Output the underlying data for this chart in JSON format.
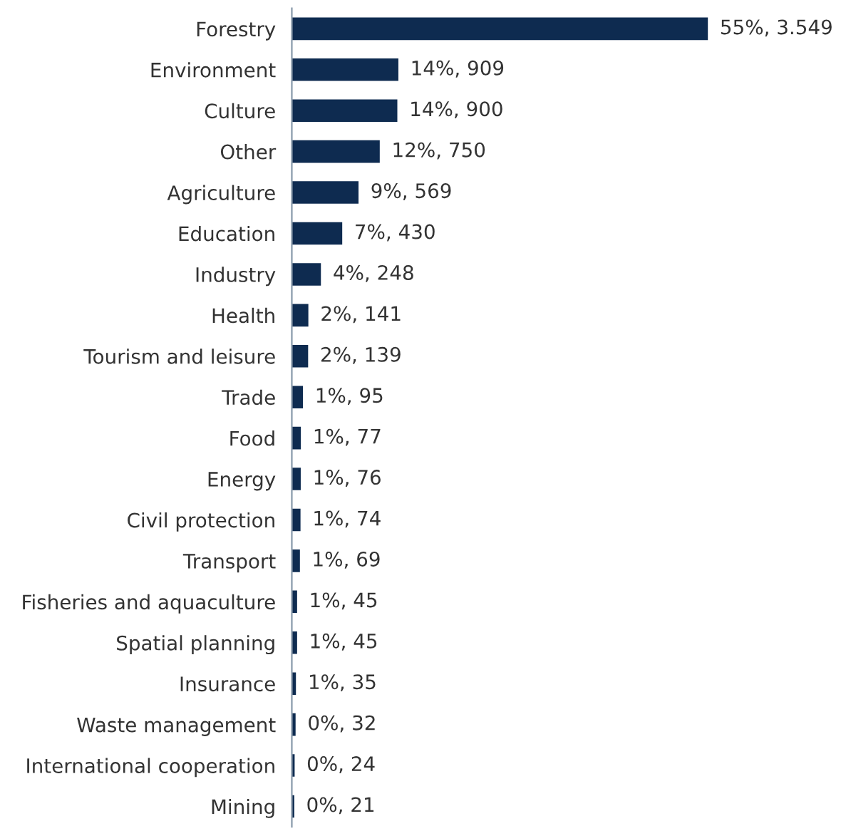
{
  "chart_data": {
    "type": "bar",
    "orientation": "horizontal",
    "categories": [
      "Forestry",
      "Environment",
      "Culture",
      "Other",
      "Agriculture",
      "Education",
      "Industry",
      "Health",
      "Tourism and leisure",
      "Trade",
      "Food",
      "Energy",
      "Civil protection",
      "Transport",
      "Fisheries and aquaculture",
      "Spatial planning",
      "Insurance",
      "Waste management",
      "International cooperation",
      "Mining"
    ],
    "values": [
      3549,
      909,
      900,
      750,
      569,
      430,
      248,
      141,
      139,
      95,
      77,
      76,
      74,
      69,
      45,
      45,
      35,
      32,
      24,
      21
    ],
    "value_labels": [
      "55%, 3.549",
      "14%, 909",
      "14%, 900",
      "12%, 750",
      "9%, 569",
      "7%, 430",
      "4%, 248",
      "2%, 141",
      "2%, 139",
      "1%, 95",
      "1%, 77",
      "1%, 76",
      "1%, 74",
      "1%, 69",
      "1%, 45",
      "1%, 45",
      "1%, 35",
      "0%, 32",
      "0%, 24",
      "0%, 21"
    ],
    "color": "#0e2b50"
  }
}
